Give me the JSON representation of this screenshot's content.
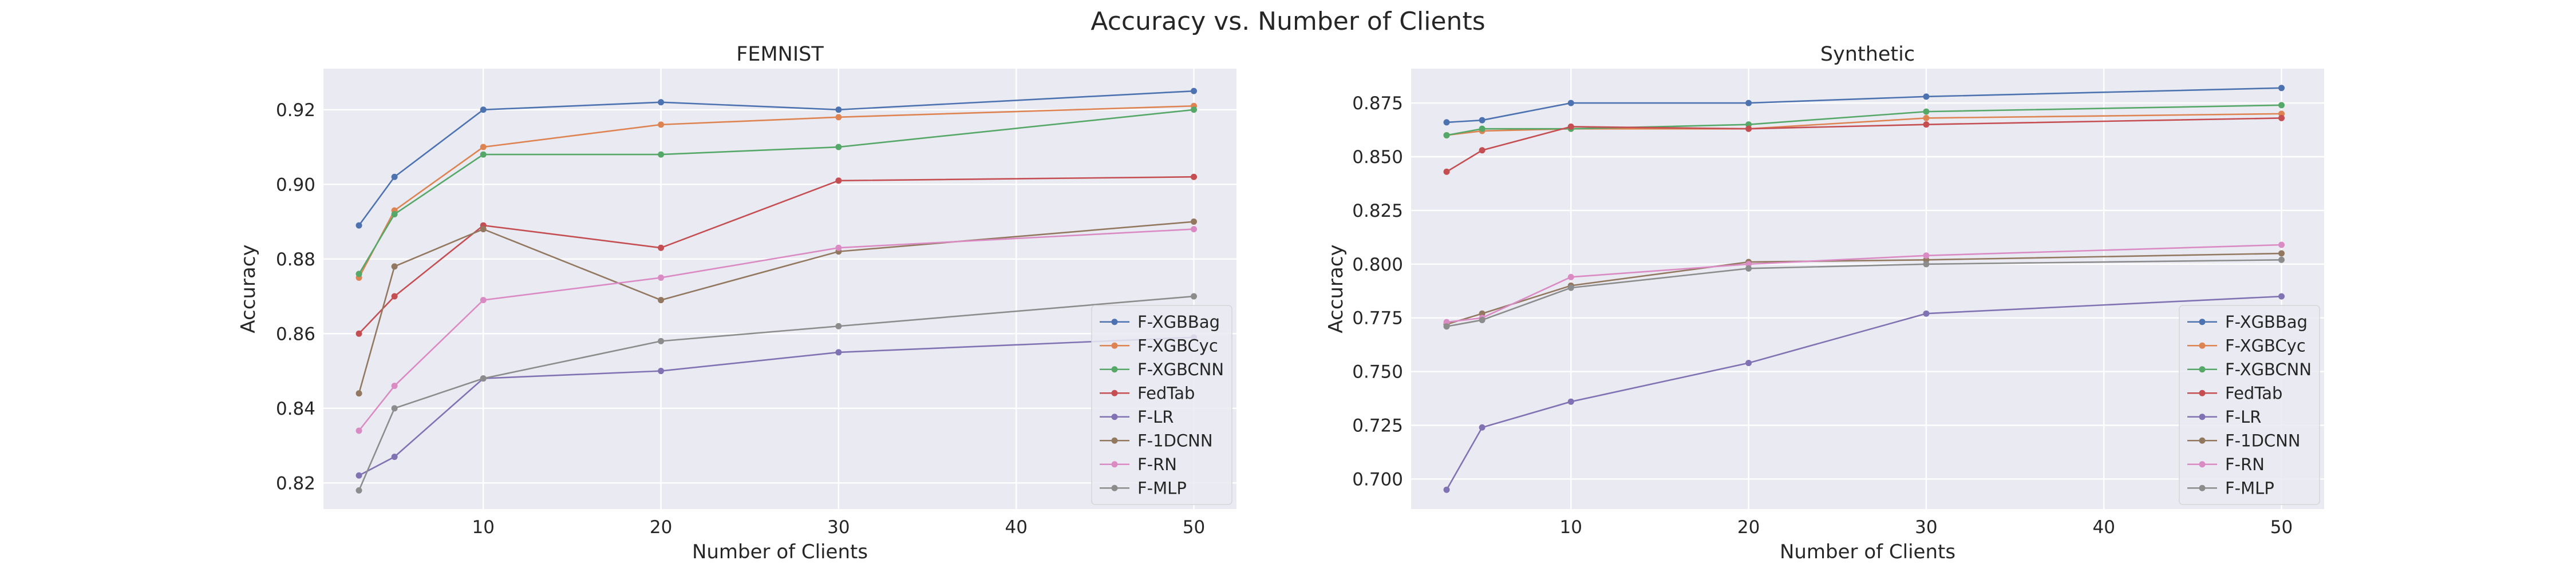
{
  "figure": {
    "title": "Accuracy vs. Number of Clients"
  },
  "chart_data": [
    {
      "type": "line",
      "title": "FEMNIST",
      "xlabel": "Number of Clients",
      "ylabel": "Accuracy",
      "xlim": [
        1,
        52.4
      ],
      "ylim": [
        0.813,
        0.931
      ],
      "xticks": [
        10,
        20,
        30,
        40,
        50
      ],
      "xtick_labels": [
        "10",
        "20",
        "30",
        "40",
        "50"
      ],
      "yticks": [
        0.82,
        0.84,
        0.86,
        0.88,
        0.9,
        0.92
      ],
      "ytick_labels": [
        "0.82",
        "0.84",
        "0.86",
        "0.88",
        "0.90",
        "0.92"
      ],
      "grid": true,
      "legend_position": "lower-right",
      "x": [
        3,
        5,
        10,
        20,
        30,
        50
      ],
      "series": [
        {
          "name": "F-XGBBag",
          "color": "#4c72b0",
          "values": [
            0.889,
            0.902,
            0.92,
            0.922,
            0.92,
            0.925
          ]
        },
        {
          "name": "F-XGBCyc",
          "color": "#dd8452",
          "values": [
            0.875,
            0.893,
            0.91,
            0.916,
            0.918,
            0.921
          ]
        },
        {
          "name": "F-XGBCNN",
          "color": "#55a868",
          "values": [
            0.876,
            0.892,
            0.908,
            0.908,
            0.91,
            0.92
          ]
        },
        {
          "name": "FedTab",
          "color": "#c44e52",
          "values": [
            0.86,
            0.87,
            0.889,
            0.883,
            0.901,
            0.902
          ]
        },
        {
          "name": "F-LR",
          "color": "#8172b3",
          "values": [
            0.822,
            0.827,
            0.848,
            0.85,
            0.855,
            0.859
          ]
        },
        {
          "name": "F-1DCNN",
          "color": "#937860",
          "values": [
            0.844,
            0.878,
            0.888,
            0.869,
            0.882,
            0.89
          ]
        },
        {
          "name": "F-RN",
          "color": "#da8bc3",
          "values": [
            0.834,
            0.846,
            0.869,
            0.875,
            0.883,
            0.888
          ]
        },
        {
          "name": "F-MLP",
          "color": "#8c8c8c",
          "values": [
            0.818,
            0.84,
            0.848,
            0.858,
            0.862,
            0.87
          ]
        }
      ]
    },
    {
      "type": "line",
      "title": "Synthetic",
      "xlabel": "Number of Clients",
      "ylabel": "Accuracy",
      "xlim": [
        1,
        52.4
      ],
      "ylim": [
        0.686,
        0.891
      ],
      "xticks": [
        10,
        20,
        30,
        40,
        50
      ],
      "xtick_labels": [
        "10",
        "20",
        "30",
        "40",
        "50"
      ],
      "yticks": [
        0.7,
        0.725,
        0.75,
        0.775,
        0.8,
        0.825,
        0.85,
        0.875
      ],
      "ytick_labels": [
        "0.700",
        "0.725",
        "0.750",
        "0.775",
        "0.800",
        "0.825",
        "0.850",
        "0.875"
      ],
      "grid": true,
      "legend_position": "lower-right",
      "x": [
        3,
        5,
        10,
        20,
        30,
        50
      ],
      "series": [
        {
          "name": "F-XGBBag",
          "color": "#4c72b0",
          "values": [
            0.866,
            0.867,
            0.875,
            0.875,
            0.878,
            0.882
          ]
        },
        {
          "name": "F-XGBCyc",
          "color": "#dd8452",
          "values": [
            0.86,
            0.862,
            0.863,
            0.863,
            0.868,
            0.87
          ]
        },
        {
          "name": "F-XGBCNN",
          "color": "#55a868",
          "values": [
            0.86,
            0.863,
            0.863,
            0.865,
            0.871,
            0.874
          ]
        },
        {
          "name": "FedTab",
          "color": "#c44e52",
          "values": [
            0.843,
            0.853,
            0.864,
            0.863,
            0.865,
            0.868
          ]
        },
        {
          "name": "F-LR",
          "color": "#8172b3",
          "values": [
            0.695,
            0.724,
            0.736,
            0.754,
            0.777,
            0.785
          ]
        },
        {
          "name": "F-1DCNN",
          "color": "#937860",
          "values": [
            0.772,
            0.777,
            0.79,
            0.801,
            0.802,
            0.805
          ]
        },
        {
          "name": "F-RN",
          "color": "#da8bc3",
          "values": [
            0.773,
            0.775,
            0.794,
            0.8,
            0.804,
            0.809
          ]
        },
        {
          "name": "F-MLP",
          "color": "#8c8c8c",
          "values": [
            0.771,
            0.774,
            0.789,
            0.798,
            0.8,
            0.802
          ]
        }
      ]
    }
  ]
}
